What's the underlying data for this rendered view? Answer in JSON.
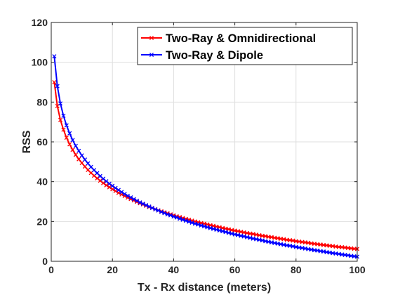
{
  "chart_data": {
    "type": "line",
    "xlabel": "Tx - Rx distance (meters)",
    "ylabel": "RSS",
    "xlim": [
      0,
      100
    ],
    "ylim": [
      0,
      120
    ],
    "xticks": [
      0,
      20,
      40,
      60,
      80,
      100
    ],
    "yticks": [
      0,
      20,
      40,
      60,
      80,
      100,
      120
    ],
    "grid": true,
    "legend_position": "top-right",
    "x": [
      1,
      2,
      3,
      4,
      5,
      6,
      7,
      8,
      9,
      10,
      11,
      12,
      13,
      14,
      15,
      16,
      17,
      18,
      19,
      20,
      21,
      22,
      23,
      24,
      25,
      26,
      27,
      28,
      29,
      30,
      31,
      32,
      33,
      34,
      35,
      36,
      37,
      38,
      39,
      40,
      41,
      42,
      43,
      44,
      45,
      46,
      47,
      48,
      49,
      50,
      51,
      52,
      53,
      54,
      55,
      56,
      57,
      58,
      59,
      60,
      61,
      62,
      63,
      64,
      65,
      66,
      67,
      68,
      69,
      70,
      71,
      72,
      73,
      74,
      75,
      76,
      77,
      78,
      79,
      80,
      81,
      82,
      83,
      84,
      85,
      86,
      87,
      88,
      89,
      90,
      91,
      92,
      93,
      94,
      95,
      96,
      97,
      98,
      99,
      100
    ],
    "series": [
      {
        "name": "Two-Ray & Omnidirectional",
        "color": "#ff0000",
        "marker": "x",
        "values": [
          90.0,
          78.0,
          71.0,
          66.1,
          62.1,
          58.8,
          56.0,
          53.5,
          51.3,
          49.4,
          47.6,
          45.9,
          44.4,
          43.0,
          41.7,
          40.5,
          39.3,
          38.2,
          37.2,
          36.2,
          35.3,
          34.4,
          33.6,
          32.8,
          32.0,
          31.3,
          30.6,
          29.9,
          29.2,
          28.6,
          27.9,
          27.3,
          26.8,
          26.2,
          25.6,
          25.1,
          24.6,
          24.1,
          23.6,
          23.1,
          22.6,
          22.2,
          21.7,
          21.3,
          20.9,
          20.4,
          20.0,
          19.6,
          19.2,
          18.9,
          18.5,
          18.1,
          17.8,
          17.4,
          17.1,
          16.7,
          16.4,
          16.1,
          15.7,
          15.4,
          15.1,
          14.8,
          14.5,
          14.2,
          13.9,
          13.7,
          13.4,
          13.1,
          12.8,
          12.6,
          12.3,
          12.1,
          11.8,
          11.6,
          11.3,
          11.1,
          10.8,
          10.6,
          10.4,
          10.1,
          9.9,
          9.7,
          9.5,
          9.3,
          9.0,
          8.8,
          8.6,
          8.4,
          8.2,
          8.0,
          7.8,
          7.6,
          7.4,
          7.2,
          7.1,
          6.9,
          6.7,
          6.5,
          6.3,
          6.2
        ]
      },
      {
        "name": "Two-Ray & Dipole",
        "color": "#0000ff",
        "marker": "x",
        "values": [
          103.0,
          88.0,
          79.3,
          73.1,
          68.3,
          64.3,
          60.9,
          58.0,
          55.5,
          53.2,
          51.1,
          49.2,
          47.4,
          45.8,
          44.3,
          42.8,
          41.5,
          40.2,
          39.0,
          37.9,
          36.8,
          35.8,
          34.8,
          33.8,
          32.9,
          32.1,
          31.2,
          30.4,
          29.6,
          28.9,
          28.2,
          27.5,
          26.8,
          26.1,
          25.5,
          24.8,
          24.2,
          23.6,
          23.1,
          22.5,
          22.0,
          21.4,
          20.9,
          20.4,
          19.9,
          19.4,
          18.9,
          18.5,
          18.0,
          17.6,
          17.1,
          16.7,
          16.3,
          15.9,
          15.5,
          15.1,
          14.7,
          14.3,
          13.9,
          13.5,
          13.2,
          12.8,
          12.5,
          12.1,
          11.8,
          11.4,
          11.1,
          10.8,
          10.5,
          10.1,
          9.8,
          9.5,
          9.2,
          8.9,
          8.6,
          8.3,
          8.0,
          7.8,
          7.5,
          7.2,
          6.9,
          6.7,
          6.4,
          6.1,
          5.9,
          5.6,
          5.4,
          5.1,
          4.9,
          4.6,
          4.4,
          4.1,
          3.9,
          3.7,
          3.4,
          3.2,
          3.0,
          2.7,
          2.5,
          2.3
        ]
      }
    ]
  }
}
